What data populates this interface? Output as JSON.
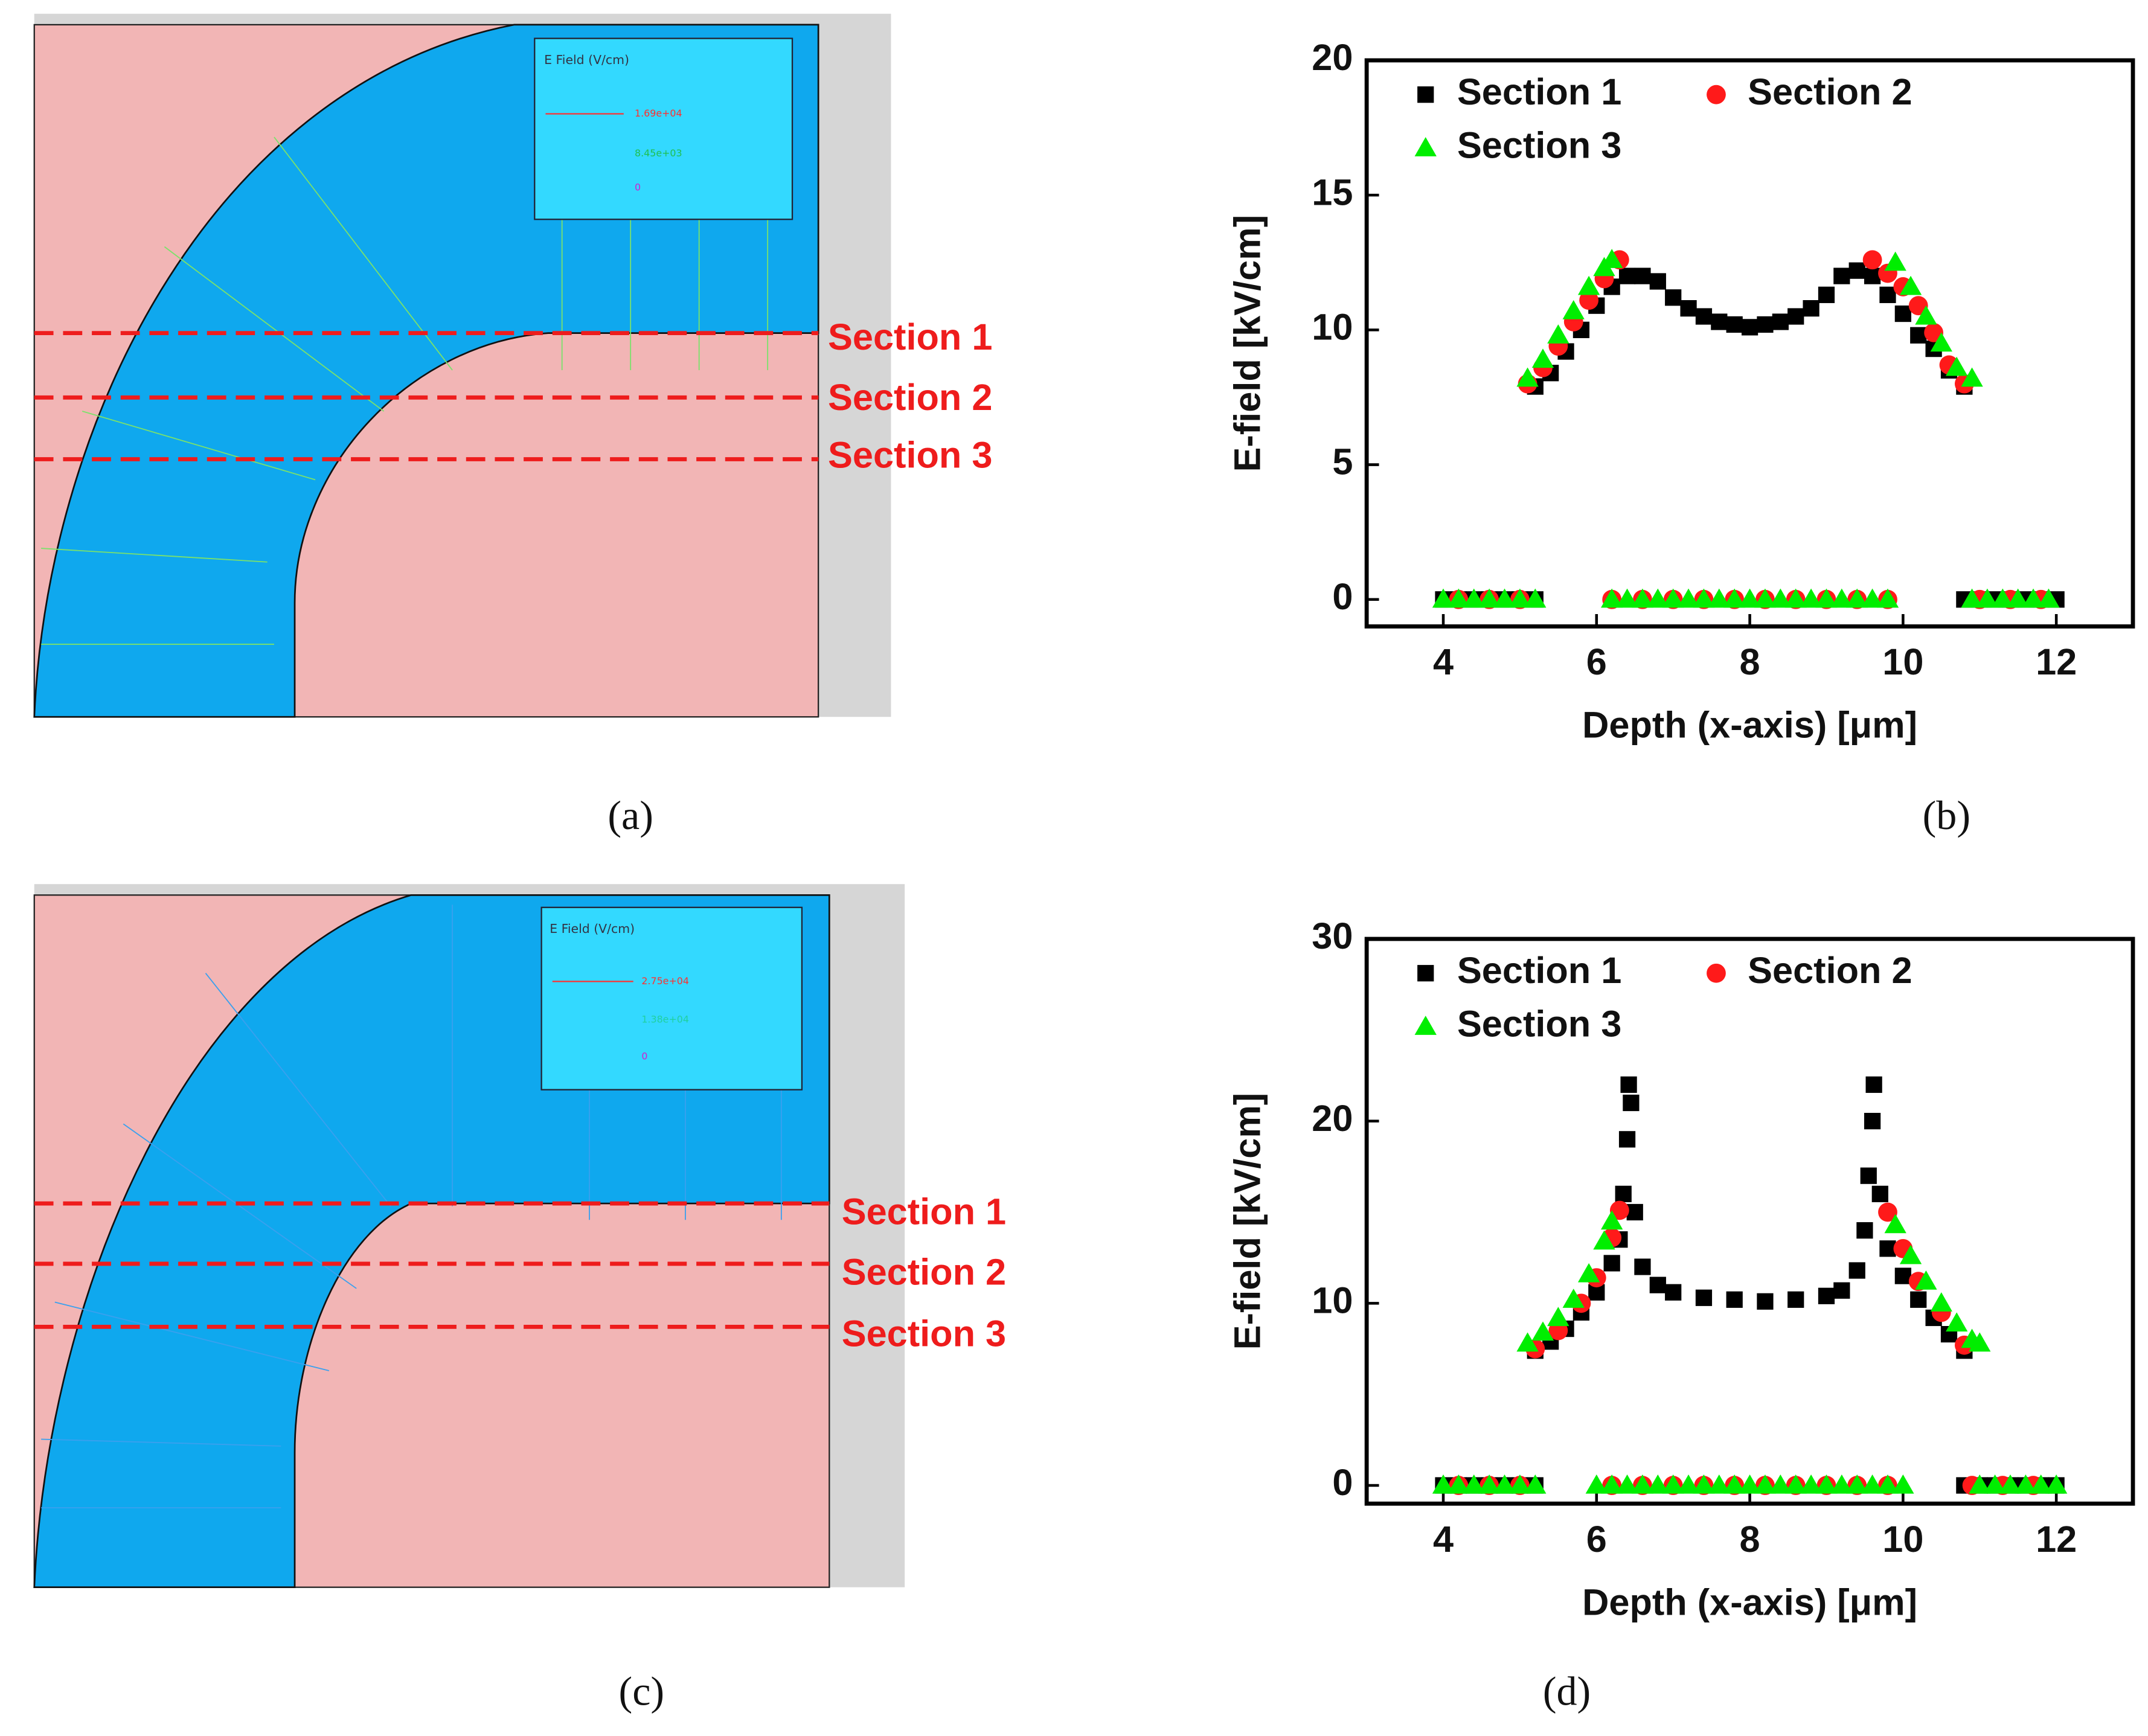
{
  "panel_labels": [
    "(a)",
    "(b)",
    "(c)",
    "(d)"
  ],
  "panels": [
    {
      "legend_title": "E Field (V/cm)",
      "legend_values": [
        "1.69e+04",
        "8.45e+03",
        "0"
      ],
      "sections": [
        "Section 1",
        "Section 2",
        "Section 3"
      ]
    },
    {
      "legend_title": "E Field (V/cm)",
      "legend_values": [
        "2.75e+04",
        "1.38e+04",
        "0"
      ],
      "sections": [
        "Section 1",
        "Section 2",
        "Section 3"
      ]
    }
  ],
  "chart_data": [
    {
      "type": "scatter",
      "x_label": "Depth (x-axis) [μm]",
      "y_label": "E-field [kV/cm]",
      "xlim": [
        3,
        13
      ],
      "xticks": [
        4,
        6,
        8,
        10,
        12
      ],
      "ylim": [
        -1,
        20
      ],
      "yticks": [
        0,
        5,
        10,
        15,
        20
      ],
      "legend": "upper left",
      "series": [
        {
          "name": "Section 1",
          "color": "#000000",
          "marker": "square",
          "x": [
            4.0,
            4.2,
            4.4,
            4.6,
            4.8,
            5.0,
            5.2,
            5.2,
            5.4,
            5.6,
            5.8,
            6.0,
            6.2,
            6.4,
            6.6,
            6.8,
            7.0,
            7.2,
            7.4,
            7.6,
            7.8,
            8.0,
            8.2,
            8.4,
            8.6,
            8.8,
            9.0,
            9.2,
            9.4,
            9.6,
            9.8,
            10.0,
            10.2,
            10.4,
            10.6,
            10.8,
            10.8,
            11.0,
            11.2,
            11.4,
            11.6,
            11.8,
            12.0
          ],
          "values": [
            0,
            0,
            0,
            0,
            0,
            0,
            0,
            7.9,
            8.4,
            9.2,
            10.0,
            10.9,
            11.6,
            12.0,
            12.0,
            11.8,
            11.2,
            10.8,
            10.5,
            10.3,
            10.2,
            10.1,
            10.2,
            10.3,
            10.5,
            10.8,
            11.3,
            12.0,
            12.2,
            12.0,
            11.3,
            10.6,
            9.8,
            9.3,
            8.5,
            7.9,
            0,
            0,
            0,
            0,
            0,
            0,
            0
          ]
        },
        {
          "name": "Section 2",
          "color": "#ff1a1a",
          "marker": "circle",
          "x": [
            4.2,
            4.6,
            5.0,
            5.1,
            5.3,
            5.5,
            5.7,
            5.9,
            6.1,
            6.3,
            6.2,
            6.6,
            7.0,
            7.4,
            7.8,
            8.2,
            8.6,
            9.0,
            9.4,
            9.8,
            9.6,
            9.8,
            10.0,
            10.2,
            10.4,
            10.6,
            10.8,
            11.0,
            11.4,
            11.8
          ],
          "values": [
            0,
            0,
            0,
            8.0,
            8.6,
            9.4,
            10.3,
            11.1,
            11.9,
            12.6,
            0,
            0,
            0,
            0,
            0,
            0,
            0,
            0,
            0,
            0,
            12.6,
            12.1,
            11.6,
            10.9,
            9.9,
            8.7,
            8.0,
            0,
            0,
            0
          ]
        },
        {
          "name": "Section 3",
          "color": "#00ee00",
          "marker": "triangle",
          "x": [
            4.0,
            4.2,
            4.4,
            4.6,
            4.8,
            5.0,
            5.2,
            5.1,
            5.3,
            5.5,
            5.7,
            5.9,
            6.1,
            6.2,
            6.2,
            6.4,
            6.6,
            6.8,
            7.0,
            7.2,
            7.4,
            7.6,
            7.8,
            8.0,
            8.2,
            8.4,
            8.6,
            8.8,
            9.0,
            9.2,
            9.4,
            9.6,
            9.8,
            9.9,
            10.1,
            10.3,
            10.5,
            10.7,
            10.9,
            10.9,
            11.1,
            11.3,
            11.5,
            11.7,
            11.9
          ],
          "values": [
            0,
            0,
            0,
            0,
            0,
            0,
            0,
            8.2,
            8.9,
            9.8,
            10.7,
            11.6,
            12.3,
            12.6,
            0,
            0,
            0,
            0,
            0,
            0,
            0,
            0,
            0,
            0,
            0,
            0,
            0,
            0,
            0,
            0,
            0,
            0,
            0,
            12.5,
            11.6,
            10.5,
            9.5,
            8.6,
            8.2,
            0,
            0,
            0,
            0,
            0,
            0
          ]
        }
      ]
    },
    {
      "type": "scatter",
      "x_label": "Depth (x-axis) [μm]",
      "y_label": "E-field [kV/cm]",
      "xlim": [
        3,
        13
      ],
      "xticks": [
        4,
        6,
        8,
        10,
        12
      ],
      "ylim": [
        -1,
        30
      ],
      "yticks": [
        0,
        10,
        20,
        30
      ],
      "legend": "upper left",
      "series": [
        {
          "name": "Section 1",
          "color": "#000000",
          "marker": "square",
          "x": [
            4.0,
            4.2,
            4.4,
            4.6,
            4.8,
            5.0,
            5.2,
            5.2,
            5.4,
            5.6,
            5.8,
            6.0,
            6.2,
            6.3,
            6.35,
            6.4,
            6.42,
            6.45,
            6.5,
            6.6,
            6.8,
            7.0,
            7.4,
            7.8,
            8.2,
            8.6,
            9.0,
            9.2,
            9.4,
            9.5,
            9.55,
            9.6,
            9.62,
            9.7,
            9.8,
            10.0,
            10.2,
            10.4,
            10.6,
            10.8,
            10.8,
            11.0,
            11.2,
            11.4,
            11.6,
            11.8,
            12.0
          ],
          "values": [
            0,
            0,
            0,
            0,
            0,
            0,
            0,
            7.4,
            7.9,
            8.6,
            9.5,
            10.6,
            12.2,
            13.5,
            16,
            19,
            22,
            21,
            15,
            12,
            11,
            10.6,
            10.3,
            10.2,
            10.1,
            10.2,
            10.4,
            10.7,
            11.8,
            14,
            17,
            20,
            22,
            16,
            13,
            11.5,
            10.2,
            9.2,
            8.3,
            7.4,
            0,
            0,
            0,
            0,
            0,
            0,
            0
          ]
        },
        {
          "name": "Section 2",
          "color": "#ff1a1a",
          "marker": "circle",
          "x": [
            4.2,
            4.6,
            5.0,
            5.2,
            5.5,
            5.8,
            6.0,
            6.2,
            6.3,
            6.2,
            6.6,
            7.0,
            7.4,
            7.8,
            8.2,
            8.6,
            9.0,
            9.4,
            9.8,
            9.8,
            10.0,
            10.2,
            10.5,
            10.8,
            10.9,
            11.3,
            11.7
          ],
          "values": [
            0,
            0,
            0,
            7.5,
            8.5,
            10,
            11.4,
            13.6,
            15.1,
            0,
            0,
            0,
            0,
            0,
            0,
            0,
            0,
            0,
            0,
            15,
            13,
            11.2,
            9.5,
            7.7,
            0,
            0,
            0
          ]
        },
        {
          "name": "Section 3",
          "color": "#00ee00",
          "marker": "triangle",
          "x": [
            4.0,
            4.2,
            4.4,
            4.6,
            4.8,
            5.0,
            5.2,
            5.1,
            5.3,
            5.5,
            5.7,
            5.9,
            6.1,
            6.2,
            6.0,
            6.2,
            6.4,
            6.6,
            6.8,
            7.0,
            7.2,
            7.4,
            7.6,
            7.8,
            8.0,
            8.2,
            8.4,
            8.6,
            8.8,
            9.0,
            9.2,
            9.4,
            9.6,
            9.8,
            10.0,
            9.9,
            10.1,
            10.3,
            10.5,
            10.7,
            10.9,
            11.0,
            11.0,
            11.2,
            11.4,
            11.6,
            11.8,
            12.0
          ],
          "values": [
            0,
            0,
            0,
            0,
            0,
            0,
            0,
            7.8,
            8.4,
            9.2,
            10.2,
            11.6,
            13.4,
            14.5,
            0,
            0,
            0,
            0,
            0,
            0,
            0,
            0,
            0,
            0,
            0,
            0,
            0,
            0,
            0,
            0,
            0,
            0,
            0,
            0,
            0,
            14.3,
            12.6,
            11.2,
            10,
            8.9,
            8,
            7.8,
            0,
            0,
            0,
            0,
            0,
            0
          ]
        }
      ]
    }
  ]
}
